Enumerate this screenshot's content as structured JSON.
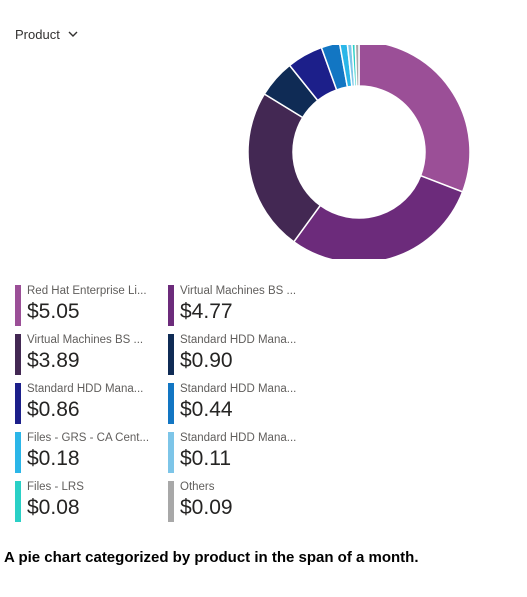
{
  "header": {
    "dropdown_label": "Product",
    "dropdown_icon": "chevron-down-icon"
  },
  "chart_data": {
    "type": "pie",
    "variant": "donut",
    "categories": [
      "Red Hat Enterprise Li...",
      "Virtual Machines BS ...",
      "Virtual Machines BS ...",
      "Standard HDD Mana...",
      "Standard HDD Mana...",
      "Standard HDD Mana...",
      "Files - GRS - CA Cent...",
      "Standard HDD Mana...",
      "Files - LRS",
      "Others"
    ],
    "values": [
      5.05,
      4.77,
      3.89,
      0.9,
      0.86,
      0.44,
      0.18,
      0.11,
      0.08,
      0.09
    ],
    "value_labels": [
      "$5.05",
      "$4.77",
      "$3.89",
      "$0.90",
      "$0.86",
      "$0.44",
      "$0.18",
      "$0.11",
      "$0.08",
      "$0.09"
    ],
    "colors": [
      "#9b4f97",
      "#6c2b7b",
      "#432853",
      "#0f2b55",
      "#1c1f8a",
      "#1276c3",
      "#2bb6e8",
      "#7dc5e8",
      "#2ad0c6",
      "#a8a8a8"
    ],
    "legend_position": "bottom"
  },
  "caption": "A pie chart categorized by product in the span of a month."
}
